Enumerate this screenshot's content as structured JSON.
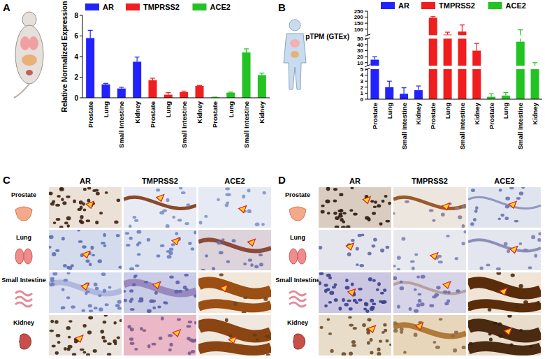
{
  "chart_data": [
    {
      "type": "bar",
      "ylabel": "Relative Normalized Expression",
      "categories": [
        "Prostate",
        "Lung",
        "Small Intestine",
        "Kidney",
        "Prostate",
        "Lung",
        "Small Intestine",
        "Kidney",
        "Prostate",
        "Lung",
        "Small Intestine",
        "Kidney"
      ],
      "series": [
        {
          "name": "AR",
          "color": "#2222ff",
          "values": [
            5.8,
            1.3,
            0.9,
            3.5,
            null,
            null,
            null,
            null,
            null,
            null,
            null,
            null
          ],
          "errors": [
            0.75,
            0.1,
            0.12,
            0.45,
            null,
            null,
            null,
            null,
            null,
            null,
            null,
            null
          ]
        },
        {
          "name": "TMPRSS2",
          "color": "#f01e1e",
          "values": [
            null,
            null,
            null,
            null,
            1.7,
            0.3,
            0.55,
            1.15,
            null,
            null,
            null,
            null
          ],
          "errors": [
            null,
            null,
            null,
            null,
            0.2,
            0.2,
            0.1,
            0.05,
            null,
            null,
            null,
            null
          ]
        },
        {
          "name": "ACE2",
          "color": "#22c322",
          "values": [
            null,
            null,
            null,
            null,
            null,
            null,
            null,
            null,
            0.05,
            0.5,
            4.4,
            2.2
          ],
          "errors": [
            null,
            null,
            null,
            null,
            null,
            null,
            null,
            null,
            0.02,
            0.05,
            0.35,
            0.2
          ]
        }
      ],
      "ylim": [
        0,
        8
      ],
      "yticks": [
        0,
        2,
        4,
        6,
        8
      ],
      "grid": false,
      "legend": "top"
    },
    {
      "type": "bar",
      "ylabel": "pTPM (GTEx)",
      "categories": [
        "Prostate",
        "Lung",
        "Small Intestine",
        "Kidney",
        "Prostate",
        "Lung",
        "Small Intestine",
        "Kidney",
        "Prostate",
        "Lung",
        "Small Intestine",
        "Kidney"
      ],
      "series": [
        {
          "name": "AR",
          "color": "#2222ff",
          "values": [
            15,
            2,
            0.9,
            1.5,
            null,
            null,
            null,
            null,
            null,
            null,
            null,
            null
          ],
          "errors": [
            5,
            1,
            1,
            0.7,
            null,
            null,
            null,
            null,
            null,
            null,
            null,
            null
          ]
        },
        {
          "name": "TMPRSS2",
          "color": "#f01e1e",
          "values": [
            null,
            null,
            null,
            null,
            195,
            55,
            80,
            30,
            null,
            null,
            null,
            null
          ],
          "errors": [
            null,
            null,
            null,
            null,
            10,
            20,
            55,
            12,
            null,
            null,
            null,
            null
          ]
        },
        {
          "name": "ACE2",
          "color": "#22c322",
          "values": [
            null,
            null,
            null,
            null,
            null,
            null,
            null,
            null,
            0.4,
            0.6,
            45,
            5
          ],
          "errors": [
            null,
            null,
            null,
            null,
            null,
            null,
            null,
            null,
            0.5,
            0.5,
            50,
            5
          ]
        }
      ],
      "ylim": [
        0,
        250
      ],
      "yticks": [
        0,
        1,
        2,
        3,
        4,
        5,
        10,
        20,
        30,
        40,
        50,
        100,
        150,
        200,
        250
      ],
      "grid": false,
      "legend": "top"
    }
  ],
  "panel_labels": [
    "A",
    "B",
    "C",
    "D"
  ],
  "ihc_panels": [
    {
      "columns": [
        "AR",
        "TMPRSS2",
        "ACE2"
      ],
      "rows": [
        "Prostate",
        "Lung",
        "Small Intestine",
        "Kidney"
      ]
    },
    {
      "columns": [
        "AR",
        "TMPRSS2",
        "ACE2"
      ],
      "rows": [
        "Prostate",
        "Lung",
        "Small Intestine",
        "Kidney"
      ]
    }
  ]
}
